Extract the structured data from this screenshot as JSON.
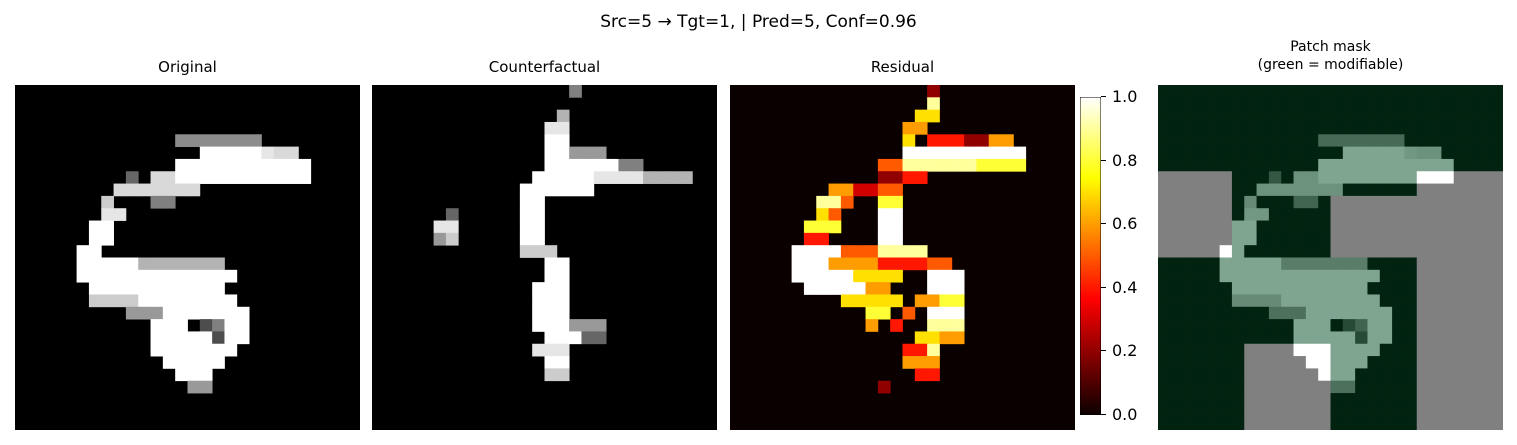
{
  "figure": {
    "suptitle": "Src=5 → Tgt=1, | Pred=5, Conf=0.96"
  },
  "chart_data": {
    "type": "heatmap",
    "grid_size": 28,
    "panels": [
      {
        "key": "original",
        "title": "Original",
        "colormap": "gray"
      },
      {
        "key": "counterfactual",
        "title": "Counterfactual",
        "colormap": "gray"
      },
      {
        "key": "residual",
        "title": "Residual",
        "colormap": "hot"
      },
      {
        "key": "patch",
        "title_line1": "Patch mask",
        "title_line2": "(green = modifiable)",
        "colormap": "gray+mask"
      }
    ],
    "colorbar": {
      "ticks": [
        "0.0",
        "0.2",
        "0.4",
        "0.6",
        "0.8",
        "1.0"
      ],
      "range": [
        0,
        1
      ]
    },
    "mask_colors": {
      "modifiable": "#012310",
      "fixed": "#808080",
      "stroke_tint": "#7fa48f"
    },
    "original_strokes": [
      [
        13,
        4,
        19,
        4,
        0.55
      ],
      [
        15,
        5,
        19,
        5,
        1.0
      ],
      [
        21,
        5,
        22,
        5,
        0.85
      ],
      [
        18,
        5,
        20,
        5,
        0.9
      ],
      [
        13,
        6,
        23,
        6,
        1.0
      ],
      [
        13,
        7,
        23,
        7,
        1.0
      ],
      [
        11,
        7,
        12,
        7,
        0.85
      ],
      [
        8,
        8,
        9,
        8,
        0.85
      ],
      [
        9,
        7,
        9,
        7,
        0.4
      ],
      [
        10,
        8,
        14,
        8,
        0.85
      ],
      [
        11,
        9,
        12,
        9,
        0.5
      ],
      [
        7,
        9,
        7,
        9,
        0.8
      ],
      [
        7,
        10,
        8,
        10,
        0.9
      ],
      [
        6,
        11,
        7,
        11,
        1.0
      ],
      [
        6,
        12,
        7,
        12,
        1.0
      ],
      [
        5,
        13,
        6,
        13,
        1.0
      ],
      [
        5,
        14,
        9,
        14,
        1.0
      ],
      [
        10,
        14,
        16,
        14,
        0.7
      ],
      [
        5,
        15,
        17,
        15,
        1.0
      ],
      [
        6,
        16,
        16,
        16,
        1.0
      ],
      [
        6,
        17,
        9,
        17,
        0.8
      ],
      [
        10,
        17,
        14,
        17,
        1.0
      ],
      [
        15,
        17,
        17,
        17,
        1.0
      ],
      [
        9,
        18,
        11,
        18,
        0.6
      ],
      [
        12,
        18,
        18,
        18,
        1.0
      ],
      [
        11,
        19,
        13,
        19,
        1.0
      ],
      [
        16,
        19,
        18,
        19,
        1.0
      ],
      [
        11,
        20,
        18,
        20,
        1.0
      ],
      [
        11,
        21,
        17,
        21,
        1.0
      ],
      [
        12,
        22,
        16,
        22,
        1.0
      ],
      [
        13,
        23,
        15,
        23,
        1.0
      ],
      [
        14,
        24,
        15,
        24,
        0.6
      ]
    ],
    "original_dark": [
      [
        15,
        19,
        0.3
      ],
      [
        16,
        19,
        0.5
      ],
      [
        16,
        20,
        0.3
      ]
    ],
    "cf_strokes": [
      [
        16,
        0,
        16,
        1,
        0.5
      ],
      [
        15,
        2,
        15,
        2,
        0.7
      ],
      [
        14,
        3,
        15,
        3,
        0.9
      ],
      [
        14,
        4,
        15,
        4,
        1.0
      ],
      [
        14,
        5,
        15,
        5,
        1.0
      ],
      [
        16,
        5,
        18,
        5,
        0.6
      ],
      [
        14,
        6,
        19,
        6,
        1.0
      ],
      [
        20,
        6,
        21,
        6,
        0.5
      ],
      [
        13,
        7,
        17,
        7,
        1.0
      ],
      [
        18,
        7,
        21,
        7,
        0.9
      ],
      [
        22,
        7,
        25,
        7,
        0.7
      ],
      [
        12,
        8,
        17,
        8,
        1.0
      ],
      [
        12,
        9,
        13,
        9,
        1.0
      ],
      [
        12,
        10,
        13,
        10,
        1.0
      ],
      [
        12,
        11,
        13,
        11,
        1.0
      ],
      [
        12,
        12,
        13,
        12,
        1.0
      ],
      [
        12,
        13,
        14,
        13,
        0.8
      ],
      [
        14,
        14,
        15,
        14,
        1.0
      ],
      [
        14,
        15,
        15,
        15,
        1.0
      ],
      [
        13,
        16,
        15,
        16,
        1.0
      ],
      [
        13,
        17,
        15,
        17,
        1.0
      ],
      [
        13,
        18,
        15,
        18,
        1.0
      ],
      [
        13,
        19,
        15,
        19,
        1.0
      ],
      [
        14,
        20,
        16,
        20,
        1.0
      ],
      [
        13,
        21,
        15,
        21,
        0.9
      ],
      [
        14,
        22,
        15,
        22,
        1.0
      ],
      [
        14,
        23,
        15,
        23,
        0.8
      ],
      [
        5,
        11,
        6,
        11,
        0.9
      ],
      [
        6,
        12,
        6,
        12,
        0.8
      ],
      [
        5,
        12,
        5,
        12,
        0.6
      ],
      [
        6,
        10,
        6,
        10,
        0.4
      ],
      [
        16,
        19,
        18,
        19,
        0.6
      ],
      [
        17,
        20,
        18,
        20,
        0.4
      ]
    ],
    "residual_strokes": [
      [
        16,
        0,
        16,
        0,
        0.2
      ],
      [
        16,
        1,
        16,
        1,
        0.9
      ],
      [
        15,
        2,
        16,
        2,
        0.7
      ],
      [
        14,
        3,
        15,
        3,
        0.6
      ],
      [
        14,
        4,
        14,
        4,
        0.7
      ],
      [
        16,
        4,
        18,
        4,
        0.4
      ],
      [
        19,
        4,
        20,
        4,
        0.2
      ],
      [
        21,
        4,
        22,
        4,
        0.6
      ],
      [
        14,
        5,
        20,
        5,
        1.0
      ],
      [
        21,
        5,
        23,
        5,
        1.0
      ],
      [
        12,
        6,
        13,
        6,
        0.5
      ],
      [
        14,
        6,
        19,
        6,
        0.9
      ],
      [
        20,
        6,
        23,
        6,
        0.8
      ],
      [
        12,
        7,
        13,
        7,
        0.2
      ],
      [
        14,
        7,
        15,
        7,
        0.4
      ],
      [
        12,
        8,
        13,
        8,
        0.5
      ],
      [
        8,
        8,
        9,
        8,
        0.6
      ],
      [
        10,
        8,
        11,
        8,
        0.3
      ],
      [
        7,
        9,
        8,
        9,
        0.9
      ],
      [
        9,
        9,
        9,
        9,
        0.5
      ],
      [
        12,
        9,
        13,
        9,
        0.8
      ],
      [
        12,
        10,
        13,
        10,
        1.0
      ],
      [
        7,
        10,
        7,
        10,
        0.7
      ],
      [
        8,
        10,
        8,
        10,
        0.5
      ],
      [
        6,
        11,
        8,
        11,
        0.8
      ],
      [
        12,
        11,
        13,
        11,
        1.0
      ],
      [
        6,
        12,
        7,
        12,
        0.4
      ],
      [
        12,
        12,
        13,
        12,
        1.0
      ],
      [
        5,
        13,
        8,
        13,
        1.0
      ],
      [
        9,
        13,
        11,
        13,
        0.5
      ],
      [
        12,
        13,
        14,
        13,
        0.9
      ],
      [
        14,
        13,
        15,
        13,
        0.9
      ],
      [
        5,
        14,
        7,
        14,
        1.0
      ],
      [
        8,
        14,
        11,
        14,
        0.6
      ],
      [
        12,
        14,
        13,
        14,
        0.4
      ],
      [
        14,
        14,
        15,
        14,
        0.4
      ],
      [
        16,
        14,
        17,
        14,
        0.5
      ],
      [
        5,
        15,
        9,
        15,
        1.0
      ],
      [
        10,
        15,
        13,
        15,
        0.7
      ],
      [
        16,
        15,
        18,
        15,
        1.0
      ],
      [
        6,
        16,
        10,
        16,
        1.0
      ],
      [
        11,
        16,
        12,
        16,
        0.6
      ],
      [
        16,
        16,
        18,
        16,
        1.0
      ],
      [
        9,
        17,
        13,
        17,
        0.7
      ],
      [
        15,
        17,
        16,
        17,
        0.6
      ],
      [
        17,
        17,
        18,
        17,
        0.8
      ],
      [
        11,
        18,
        12,
        18,
        0.8
      ],
      [
        14,
        18,
        14,
        18,
        0.5
      ],
      [
        16,
        18,
        18,
        18,
        1.0
      ],
      [
        11,
        19,
        11,
        19,
        0.6
      ],
      [
        13,
        19,
        13,
        19,
        0.4
      ],
      [
        16,
        19,
        18,
        19,
        0.9
      ],
      [
        15,
        20,
        16,
        20,
        0.7
      ],
      [
        17,
        20,
        18,
        20,
        0.6
      ],
      [
        14,
        21,
        15,
        21,
        0.4
      ],
      [
        16,
        21,
        16,
        21,
        0.9
      ],
      [
        14,
        22,
        16,
        22,
        0.6
      ],
      [
        15,
        23,
        16,
        23,
        0.4
      ],
      [
        12,
        24,
        12,
        24,
        0.2
      ]
    ],
    "patch_fixed_regions": [
      [
        0,
        7,
        6,
        14
      ],
      [
        14,
        9,
        21,
        14
      ],
      [
        21,
        7,
        28,
        28
      ],
      [
        7,
        21,
        14,
        28
      ],
      [
        0,
        14,
        0,
        14
      ]
    ]
  }
}
